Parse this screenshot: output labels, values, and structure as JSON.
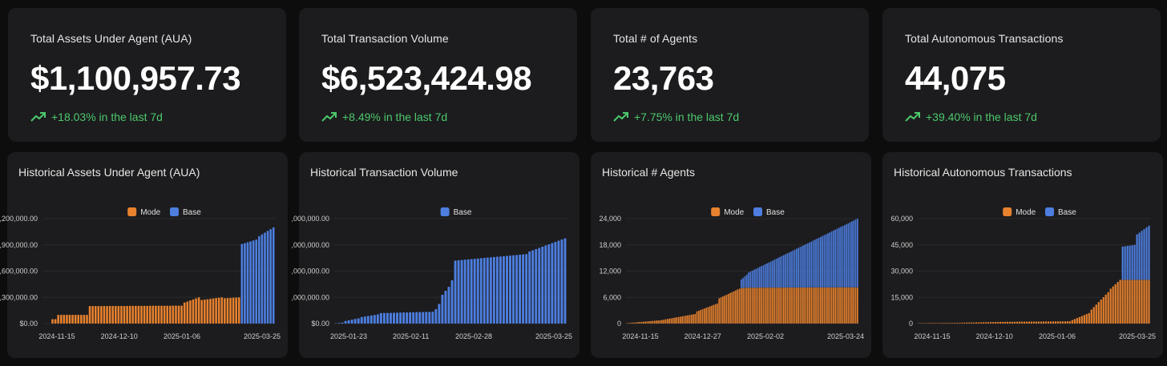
{
  "stats": [
    {
      "title": "Total Assets Under Agent (AUA)",
      "value": "$1,100,957.73",
      "change": "+18.03% in the last 7d"
    },
    {
      "title": "Total Transaction Volume",
      "value": "$6,523,424.98",
      "change": "+8.49% in the last 7d"
    },
    {
      "title": "Total # of Agents",
      "value": "23,763",
      "change": "+7.75% in the last 7d"
    },
    {
      "title": "Total Autonomous Transactions",
      "value": "44,075",
      "change": "+39.40% in the last 7d"
    }
  ],
  "colors": {
    "mode": "#e8822e",
    "base": "#4d7ee0",
    "positive": "#4cc86c",
    "grid": "#2a2a2d",
    "tick": "#cfcfcf"
  },
  "chart_data": [
    {
      "type": "bar",
      "stacked": true,
      "title": "Historical Assets Under Agent (AUA)",
      "legend": [
        "Mode",
        "Base"
      ],
      "ylim": [
        0,
        1200000
      ],
      "yticks": [
        0,
        300000,
        600000,
        900000,
        1200000
      ],
      "ytick_labels": [
        "$0.00",
        ",300,000.00",
        ",600,000.00",
        ",900,000.00",
        ",200,000.00"
      ],
      "xtick_labels": [
        "2024-11-15",
        "2024-12-10",
        "2025-01-06",
        "2025-03-25"
      ],
      "segments": [
        {
          "n": 3,
          "mode": [
            0,
            0
          ],
          "base": 0
        },
        {
          "n": 2,
          "mode": [
            50000,
            50000
          ],
          "base": 0
        },
        {
          "n": 11,
          "mode": [
            100000,
            100000
          ],
          "base": 0
        },
        {
          "n": 33,
          "mode": [
            200000,
            205000
          ],
          "base": 0
        },
        {
          "n": 6,
          "mode": [
            240000,
            300000
          ],
          "base": 0
        },
        {
          "n": 8,
          "mode": [
            270000,
            300000
          ],
          "base": 0
        },
        {
          "n": 6,
          "mode": [
            290000,
            300000
          ],
          "base": 0
        },
        {
          "n": 6,
          "mode": [
            0,
            0
          ],
          "base": [
            910000,
            960000
          ]
        },
        {
          "n": 6,
          "mode": [
            0,
            0
          ],
          "base": [
            1000000,
            1100000
          ]
        }
      ]
    },
    {
      "type": "bar",
      "stacked": false,
      "title": "Historical Transaction Volume",
      "legend": [
        "Base"
      ],
      "ylim": [
        0,
        8000000
      ],
      "yticks": [
        0,
        2000000,
        4000000,
        6000000,
        8000000
      ],
      "ytick_labels": [
        "$0.00",
        ",000,000.00",
        ",000,000.00",
        ",000,000.00",
        ",000,000.00"
      ],
      "xtick_labels": [
        "2025-01-23",
        "2025-02-11",
        "2025-02-28",
        "2025-03-25"
      ],
      "segments": [
        {
          "n": 3,
          "base": [
            20000,
            80000
          ]
        },
        {
          "n": 5,
          "base": [
            200000,
            400000
          ]
        },
        {
          "n": 6,
          "base": [
            500000,
            700000
          ]
        },
        {
          "n": 17,
          "base": [
            800000,
            900000
          ]
        },
        {
          "n": 1,
          "base": 1100000
        },
        {
          "n": 1,
          "base": 1500000
        },
        {
          "n": 3,
          "base": [
            2200000,
            2800000
          ]
        },
        {
          "n": 1,
          "base": 3300000
        },
        {
          "n": 23,
          "base": [
            4800000,
            5300000
          ]
        },
        {
          "n": 12,
          "base": [
            5500000,
            6500000
          ]
        }
      ]
    },
    {
      "type": "bar",
      "stacked": true,
      "title": "Historical # Agents",
      "legend": [
        "Mode",
        "Base"
      ],
      "ylim": [
        0,
        24000
      ],
      "yticks": [
        0,
        6000,
        12000,
        18000,
        24000
      ],
      "ytick_labels": [
        "0",
        "6,000",
        "12,000",
        "18,000",
        "24,000"
      ],
      "xtick_labels": [
        "2024-11-15",
        "2024-12-27",
        "2025-02-02",
        "2025-03-24"
      ],
      "segments": [
        {
          "n": 20,
          "mode": [
            100,
            800
          ],
          "base": 0
        },
        {
          "n": 18,
          "mode": [
            900,
            2200
          ],
          "base": 0
        },
        {
          "n": 12,
          "mode": [
            2800,
            4600
          ],
          "base": 0
        },
        {
          "n": 12,
          "mode": [
            5800,
            8000
          ],
          "base": 0
        },
        {
          "n": 4,
          "mode": [
            8100,
            8200
          ],
          "base": [
            2000,
            3000
          ]
        },
        {
          "n": 60,
          "mode": [
            8200,
            8300
          ],
          "base": [
            3500,
            15700
          ]
        }
      ]
    },
    {
      "type": "bar",
      "stacked": true,
      "title": "Historical Autonomous Transactions",
      "legend": [
        "Mode",
        "Base"
      ],
      "ylim": [
        0,
        60000
      ],
      "yticks": [
        0,
        15000,
        30000,
        45000,
        60000
      ],
      "ytick_labels": [
        "0",
        "15,000",
        "30,000",
        "45,000",
        "60,000"
      ],
      "xtick_labels": [
        "2024-11-15",
        "2024-12-10",
        "2025-01-06",
        "2025-03-25"
      ],
      "segments": [
        {
          "n": 18,
          "mode": [
            200,
            400
          ],
          "base": 0
        },
        {
          "n": 18,
          "mode": [
            500,
            1000
          ],
          "base": 0
        },
        {
          "n": 28,
          "mode": [
            1000,
            1300
          ],
          "base": 0
        },
        {
          "n": 8,
          "mode": [
            2000,
            6000
          ],
          "base": 0
        },
        {
          "n": 8,
          "mode": [
            8000,
            18000
          ],
          "base": 0
        },
        {
          "n": 5,
          "mode": [
            20000,
            25000
          ],
          "base": 0
        },
        {
          "n": 6,
          "mode": [
            25000,
            25000
          ],
          "base": [
            19000,
            20000
          ]
        },
        {
          "n": 6,
          "mode": [
            25000,
            25000
          ],
          "base": [
            26000,
            31000
          ]
        }
      ]
    }
  ]
}
